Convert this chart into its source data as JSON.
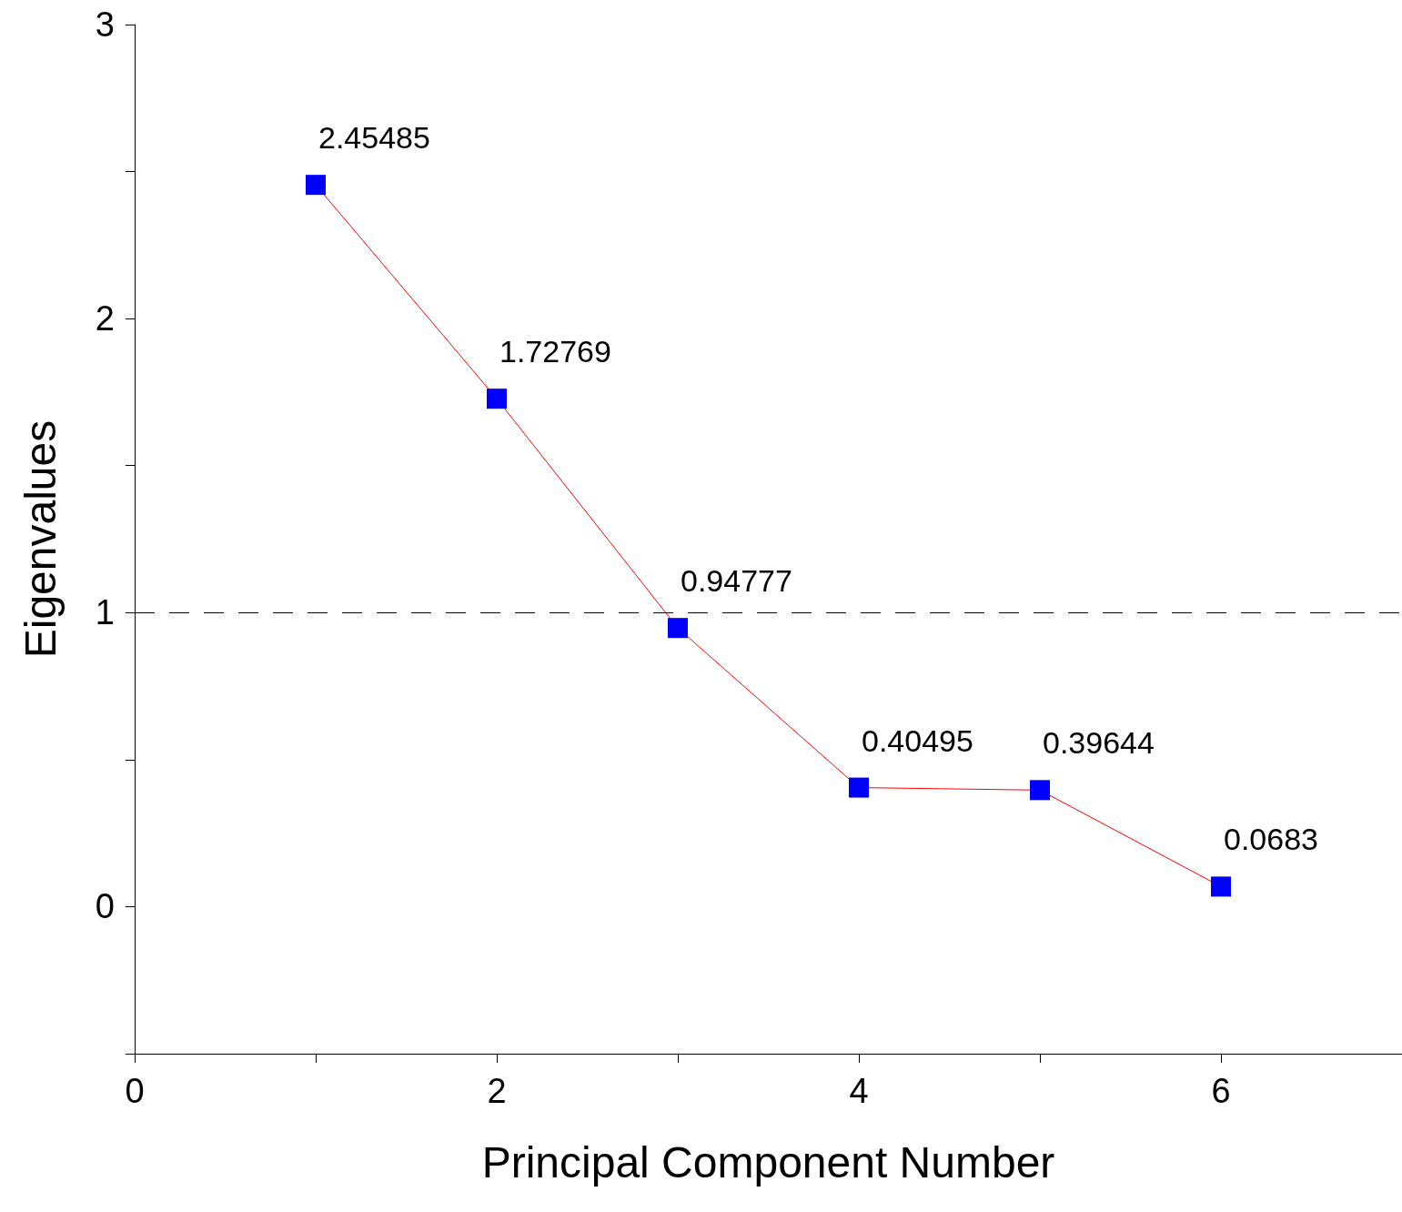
{
  "chart_data": {
    "type": "line",
    "xlabel": "Principal Component Number",
    "ylabel": "Eigenvalues",
    "x": [
      1,
      2,
      3,
      4,
      5,
      6
    ],
    "series": [
      {
        "color": "#ff0000",
        "colors": [
          "#0000ff",
          "#0000ff",
          "#0000ff",
          "#0000ff",
          "#0000ff",
          "#0000ff"
        ],
        "values": [
          2.45485,
          1.72769,
          0.94777,
          0.40495,
          0.39644,
          0.0683
        ]
      }
    ],
    "marker": "square",
    "line_style": "solid",
    "data_labels": true,
    "grid": false,
    "xlim": [
      0,
      7
    ],
    "xticks": [
      0,
      {
        "value": 1,
        "label": null
      },
      2,
      {
        "value": 3,
        "label": null
      },
      4,
      {
        "value": 5,
        "label": null
      },
      6
    ],
    "ylim": [
      -0.5,
      3
    ],
    "yticks": [
      {
        "value": -0.5,
        "label": null
      },
      0,
      {
        "value": 0.5,
        "label": null
      },
      1,
      {
        "value": 1.5,
        "label": null
      },
      2,
      {
        "value": 2.5,
        "label": null
      },
      3
    ],
    "ref_lines": [
      {
        "axis": "y",
        "value": 1,
        "label": null,
        "line_style": "dashed",
        "color": "#000000"
      }
    ]
  }
}
